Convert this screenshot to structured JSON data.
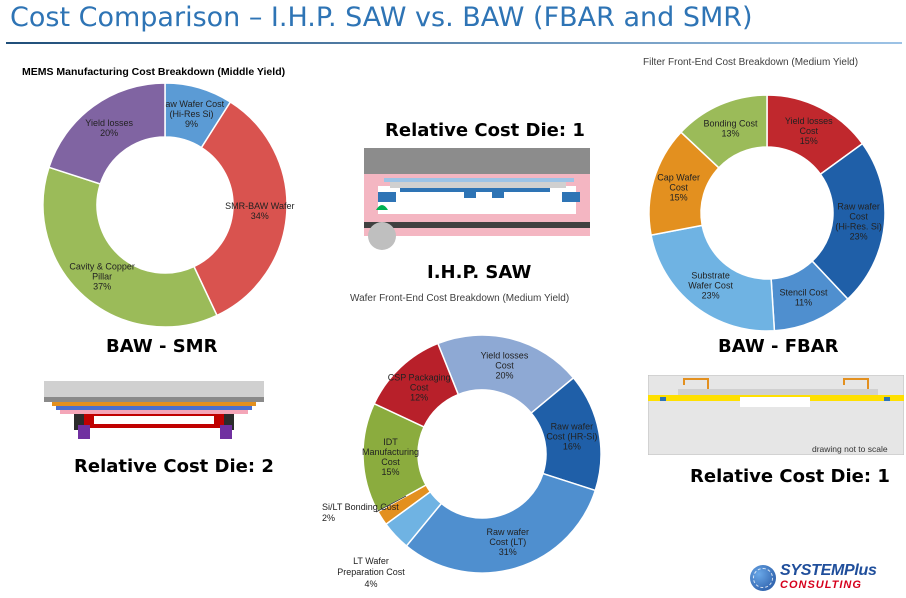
{
  "page": {
    "title": "Cost Comparison – I.H.P. SAW vs. BAW (FBAR and SMR)",
    "labels": {
      "baw_smr": "BAW - SMR",
      "baw_fbar": "BAW - FBAR",
      "ihp_saw": "I.H.P. SAW",
      "rel_die_top": "Relative Cost Die: 1",
      "rel_die_smr": "Relative Cost Die: 2",
      "rel_die_fbar": "Relative Cost Die: 1"
    },
    "note": "drawing not to scale",
    "logo": {
      "line1": "SYSTEMPlus",
      "line2": "CONSULTING"
    }
  },
  "chart_data": [
    {
      "type": "pie",
      "title": "MEMS Manufacturing Cost Breakdown (Middle Yield)",
      "slices": [
        {
          "label": "Raw Wafer Cost (Hi-Res Si)",
          "value": 9,
          "display": "9%",
          "color": "#5b9bd5"
        },
        {
          "label": "SMR-BAW Wafer",
          "value": 34,
          "display": "34%",
          "color": "#d9534f"
        },
        {
          "label": "Cavity & Copper Pillar",
          "value": 37,
          "display": "37%",
          "color": "#9bbb59"
        },
        {
          "label": "Yield losses",
          "value": 20,
          "display": "20%",
          "color": "#8064a2"
        }
      ]
    },
    {
      "type": "pie",
      "title": "Filter Front-End Cost Breakdown (Medium Yield)",
      "slices": [
        {
          "label": "Yield losses Cost",
          "value": 15,
          "display": "15%",
          "color": "#c0282d"
        },
        {
          "label": "Raw wafer Cost (Hi-Res. Si)",
          "value": 23,
          "display": "23%",
          "color": "#1f5fa8"
        },
        {
          "label": "Stencil Cost",
          "value": 11,
          "display": "11%",
          "color": "#4f8fcf"
        },
        {
          "label": "Substrate Wafer Cost",
          "value": 23,
          "display": "23%",
          "color": "#6fb3e3"
        },
        {
          "label": "Cap Wafer Cost",
          "value": 15,
          "display": "15%",
          "color": "#e3901f"
        },
        {
          "label": "Bonding Cost",
          "value": 13,
          "display": "13%",
          "color": "#9bbb59"
        }
      ]
    },
    {
      "type": "pie",
      "title": "Wafer Front-End Cost Breakdown (Medium Yield)",
      "slices": [
        {
          "label": "Yield losses Cost",
          "value": 20,
          "display": "20%",
          "color": "#8ea9d4"
        },
        {
          "label": "Raw wafer Cost (HR-Si)",
          "value": 16,
          "display": "16%",
          "color": "#1f5fa8"
        },
        {
          "label": "Raw wafer Cost (LT)",
          "value": 31,
          "display": "31%",
          "color": "#4f8fcf"
        },
        {
          "label": "LT Wafer Preparation Cost",
          "value": 4,
          "display": "4%",
          "color": "#6fb3e3"
        },
        {
          "label": "Si/LT Bonding Cost",
          "value": 2,
          "display": "2%",
          "color": "#e3901f"
        },
        {
          "label": "IDT Manufacturing Cost",
          "value": 15,
          "display": "15%",
          "color": "#8bac3e"
        },
        {
          "label": "CSP Packaging Cost",
          "value": 12,
          "display": "12%",
          "color": "#b8202a"
        }
      ]
    }
  ]
}
